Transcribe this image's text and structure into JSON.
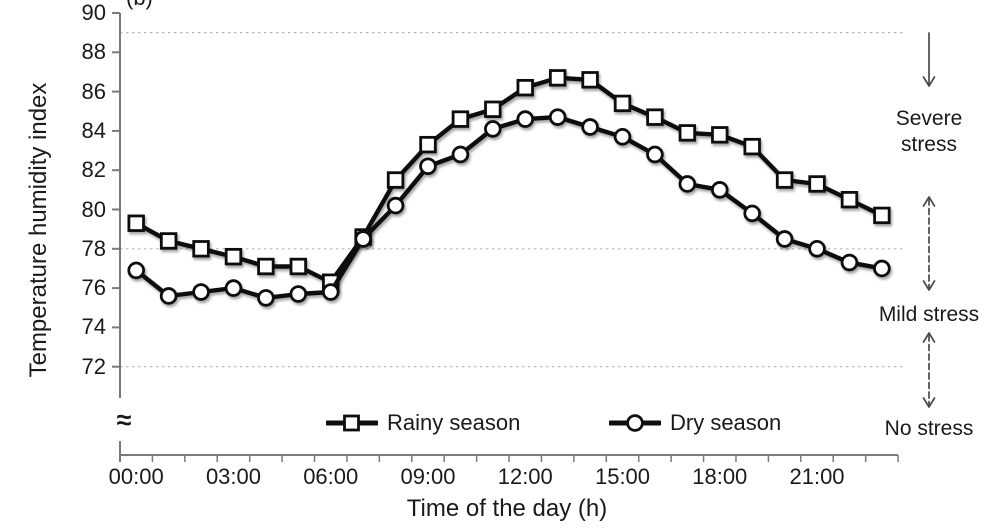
{
  "panel_label": "(b)",
  "colors": {
    "series": "#0f0f0f",
    "marker_fill": "#ffffff",
    "axis": "#7a7a7a",
    "grid": "#b8b8b8",
    "text": "#1a1a1a",
    "arrow": "#4a4a4a"
  },
  "y_axis": {
    "title": "Temperature humidity index",
    "ticks": [
      90,
      88,
      86,
      84,
      82,
      80,
      78,
      76,
      74,
      72
    ],
    "break_symbol": "≈"
  },
  "x_axis": {
    "title": "Time of the day (h)",
    "tick_labels": [
      "00:00",
      "03:00",
      "06:00",
      "09:00",
      "12:00",
      "15:00",
      "18:00",
      "21:00"
    ],
    "label_hours": [
      0,
      3,
      6,
      9,
      12,
      15,
      18,
      21
    ]
  },
  "legend": {
    "items": [
      {
        "label": "Rainy season",
        "marker": "square"
      },
      {
        "label": "Dry season",
        "marker": "circle"
      }
    ]
  },
  "stress_annotations": [
    {
      "label": "Severe stress",
      "arrow": "down"
    },
    {
      "label": "Mild stress",
      "arrow": "up-down"
    },
    {
      "label": "No stress",
      "arrow": "up-down"
    }
  ],
  "chart_data": {
    "type": "line",
    "title": "",
    "xlabel": "Time of the day (h)",
    "ylabel": "Temperature humidity index",
    "x": [
      0,
      1,
      2,
      3,
      4,
      5,
      6,
      7,
      8,
      9,
      10,
      11,
      12,
      13,
      14,
      15,
      16,
      17,
      18,
      19,
      20,
      21,
      22,
      23
    ],
    "x_labels": [
      "00:00",
      "01:00",
      "02:00",
      "03:00",
      "04:00",
      "05:00",
      "06:00",
      "07:00",
      "08:00",
      "09:00",
      "10:00",
      "11:00",
      "12:00",
      "13:00",
      "14:00",
      "15:00",
      "16:00",
      "17:00",
      "18:00",
      "19:00",
      "20:00",
      "21:00",
      "22:00",
      "23:00"
    ],
    "series": [
      {
        "name": "Rainy season",
        "marker": "square",
        "values": [
          79.3,
          78.4,
          78.0,
          77.6,
          77.1,
          77.1,
          76.3,
          78.6,
          81.5,
          83.3,
          84.6,
          85.1,
          86.2,
          86.7,
          86.6,
          85.4,
          84.7,
          83.9,
          83.8,
          83.2,
          81.5,
          81.3,
          80.5,
          79.7
        ]
      },
      {
        "name": "Dry season",
        "marker": "circle",
        "values": [
          76.9,
          75.6,
          75.8,
          76.0,
          75.5,
          75.7,
          75.8,
          78.5,
          80.2,
          82.2,
          82.8,
          84.1,
          84.6,
          84.7,
          84.2,
          83.7,
          82.8,
          81.3,
          81.0,
          79.8,
          78.5,
          78.0,
          77.3,
          77.0
        ]
      }
    ],
    "ylim": [
      72,
      90
    ],
    "y_tick_step": 2,
    "axis_break_below": 72,
    "gridlines_y": [
      89,
      78,
      72
    ],
    "grid": "horizontal dashed threshold lines only",
    "legend_position": "inside bottom center"
  }
}
